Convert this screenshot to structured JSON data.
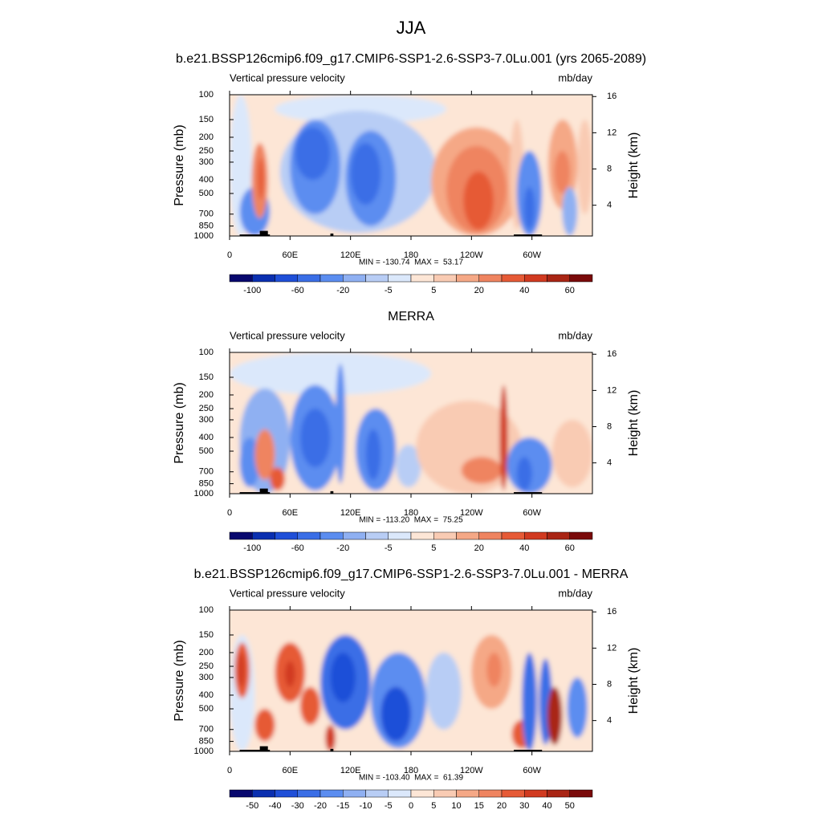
{
  "title": "JJA",
  "chart_data": [
    {
      "type": "contour",
      "title": "b.e21.BSSP126cmip6.f09_g17.CMIP6-SSP1-2.6-SSP3-7.0Lu.001 (yrs 2065-2089)",
      "left_label": "Vertical pressure velocity",
      "right_label": "mb/day",
      "ylabel": "Pressure (mb)",
      "y2label": "Height (km)",
      "stats": "MIN = -130.74  MAX =  53.17",
      "xlim": [
        0,
        360
      ],
      "xticks": [
        0,
        {
          "value": 60,
          "label": "60E"
        },
        {
          "value": 120,
          "label": "120E"
        },
        180,
        {
          "value": 240,
          "label": "120W"
        },
        {
          "value": 300,
          "label": "60W"
        }
      ],
      "ylim": [
        100,
        1000
      ],
      "yticks": [
        100,
        150,
        200,
        250,
        300,
        400,
        500,
        700,
        850,
        1000
      ],
      "ylog": true,
      "y2lim": [
        0.6,
        16.2
      ],
      "y2ticks": [
        4,
        8,
        12,
        16
      ],
      "colorbar": {
        "labels": [
          -100,
          -60,
          -20,
          -5,
          5,
          20,
          40,
          60
        ],
        "colors": [
          "#08086e",
          "#0a2fb0",
          "#1f4fd8",
          "#3a6ee6",
          "#5b8df0",
          "#8fb0f2",
          "#b8cdf5",
          "#dbe8fb",
          "#fde6d6",
          "#f9cbb3",
          "#f5a886",
          "#ef8460",
          "#e65a36",
          "#d13a20",
          "#a92514",
          "#7a0a0a"
        ]
      },
      "features": [
        {
          "lon": [
            -60,
            420
          ],
          "p": [
            30,
            3000
          ],
          "value": 3
        },
        {
          "lon": [
            0,
            22
          ],
          "p": [
            100,
            1000
          ],
          "value": -3
        },
        {
          "lon": [
            45,
            215
          ],
          "p": [
            100,
            160
          ],
          "value": -3
        },
        {
          "lon": [
            50,
            205
          ],
          "p": [
            130,
            950
          ],
          "value": -12
        },
        {
          "lon": [
            60,
            110
          ],
          "p": [
            150,
            700
          ],
          "value": -30
        },
        {
          "lon": [
            65,
            100
          ],
          "p": [
            170,
            400
          ],
          "value": -50
        },
        {
          "lon": [
            115,
            165
          ],
          "p": [
            180,
            850
          ],
          "value": -35
        },
        {
          "lon": [
            120,
            150
          ],
          "p": [
            220,
            600
          ],
          "value": -60
        },
        {
          "lon": [
            10,
            40
          ],
          "p": [
            450,
            1000
          ],
          "value": -30
        },
        {
          "lon": [
            22,
            38
          ],
          "p": [
            220,
            750
          ],
          "value": 25
        },
        {
          "lon": [
            28,
            34
          ],
          "p": [
            280,
            550
          ],
          "value": 35
        },
        {
          "lon": [
            200,
            290
          ],
          "p": [
            170,
            1000
          ],
          "value": 15
        },
        {
          "lon": [
            215,
            275
          ],
          "p": [
            230,
            950
          ],
          "value": 25
        },
        {
          "lon": [
            232,
            262
          ],
          "p": [
            350,
            900
          ],
          "value": 35
        },
        {
          "lon": [
            278,
            292
          ],
          "p": [
            150,
            900
          ],
          "value": 10
        },
        {
          "lon": [
            285,
            310
          ],
          "p": [
            250,
            1000
          ],
          "value": -35
        },
        {
          "lon": [
            292,
            303
          ],
          "p": [
            450,
            900
          ],
          "value": -60
        },
        {
          "lon": [
            316,
            345
          ],
          "p": [
            150,
            650
          ],
          "value": 15
        },
        {
          "lon": [
            322,
            338
          ],
          "p": [
            250,
            500
          ],
          "value": 25
        },
        {
          "lon": [
            330,
            345
          ],
          "p": [
            450,
            1000
          ],
          "value": -15
        },
        {
          "lon": [
            345,
            360
          ],
          "p": [
            150,
            700
          ],
          "value": 10
        }
      ]
    },
    {
      "type": "contour",
      "title": "MERRA",
      "left_label": "Vertical pressure velocity",
      "right_label": "mb/day",
      "ylabel": "Pressure (mb)",
      "y2label": "Height (km)",
      "stats": "MIN = -113.20  MAX =  75.25",
      "xlim": [
        0,
        360
      ],
      "xticks": [
        0,
        {
          "value": 60,
          "label": "60E"
        },
        {
          "value": 120,
          "label": "120E"
        },
        180,
        {
          "value": 240,
          "label": "120W"
        },
        {
          "value": 300,
          "label": "60W"
        }
      ],
      "ylim": [
        100,
        1000
      ],
      "yticks": [
        100,
        150,
        200,
        250,
        300,
        400,
        500,
        700,
        850,
        1000
      ],
      "ylog": true,
      "y2lim": [
        0.6,
        16.2
      ],
      "y2ticks": [
        4,
        8,
        12,
        16
      ],
      "colorbar": {
        "labels": [
          -100,
          -60,
          -20,
          -5,
          5,
          20,
          40,
          60
        ],
        "colors": [
          "#08086e",
          "#0a2fb0",
          "#1f4fd8",
          "#3a6ee6",
          "#5b8df0",
          "#8fb0f2",
          "#b8cdf5",
          "#dbe8fb",
          "#fde6d6",
          "#f9cbb3",
          "#f5a886",
          "#ef8460",
          "#e65a36",
          "#d13a20",
          "#a92514",
          "#7a0a0a"
        ]
      },
      "features": [
        {
          "lon": [
            -60,
            420
          ],
          "p": [
            30,
            3000
          ],
          "value": 3
        },
        {
          "lon": [
            0,
            200
          ],
          "p": [
            100,
            200
          ],
          "value": -3
        },
        {
          "lon": [
            10,
            60
          ],
          "p": [
            180,
            1000
          ],
          "value": -15
        },
        {
          "lon": [
            10,
            30
          ],
          "p": [
            400,
            900
          ],
          "value": -40
        },
        {
          "lon": [
            25,
            45
          ],
          "p": [
            350,
            800
          ],
          "value": 20
        },
        {
          "lon": [
            40,
            55
          ],
          "p": [
            650,
            950
          ],
          "value": 35
        },
        {
          "lon": [
            60,
            110
          ],
          "p": [
            170,
            950
          ],
          "value": -25
        },
        {
          "lon": [
            70,
            100
          ],
          "p": [
            250,
            650
          ],
          "value": -45
        },
        {
          "lon": [
            105,
            115
          ],
          "p": [
            120,
            850
          ],
          "value": -25
        },
        {
          "lon": [
            125,
            165
          ],
          "p": [
            250,
            950
          ],
          "value": -25
        },
        {
          "lon": [
            135,
            150
          ],
          "p": [
            350,
            800
          ],
          "value": -50
        },
        {
          "lon": [
            165,
            190
          ],
          "p": [
            450,
            900
          ],
          "value": -8
        },
        {
          "lon": [
            185,
            290
          ],
          "p": [
            220,
            1000
          ],
          "value": 12
        },
        {
          "lon": [
            230,
            270
          ],
          "p": [
            550,
            850
          ],
          "value": 25
        },
        {
          "lon": [
            268,
            276
          ],
          "p": [
            170,
            950
          ],
          "value": 40
        },
        {
          "lon": [
            275,
            320
          ],
          "p": [
            400,
            1000
          ],
          "value": -30
        },
        {
          "lon": [
            285,
            300
          ],
          "p": [
            550,
            950
          ],
          "value": -50
        },
        {
          "lon": [
            320,
            360
          ],
          "p": [
            300,
            900
          ],
          "value": 10
        }
      ]
    },
    {
      "type": "contour",
      "title": "b.e21.BSSP126cmip6.f09_g17.CMIP6-SSP1-2.6-SSP3-7.0Lu.001 - MERRA",
      "left_label": "Vertical pressure velocity",
      "right_label": "mb/day",
      "ylabel": "Pressure (mb)",
      "y2label": "Height (km)",
      "stats": "MIN = -103.40  MAX =  61.39",
      "xlim": [
        0,
        360
      ],
      "xticks": [
        0,
        {
          "value": 60,
          "label": "60E"
        },
        {
          "value": 120,
          "label": "120E"
        },
        180,
        {
          "value": 240,
          "label": "120W"
        },
        {
          "value": 300,
          "label": "60W"
        }
      ],
      "ylim": [
        100,
        1000
      ],
      "yticks": [
        100,
        150,
        200,
        250,
        300,
        400,
        500,
        700,
        850,
        1000
      ],
      "ylog": true,
      "y2lim": [
        0.6,
        16.2
      ],
      "y2ticks": [
        4,
        8,
        12,
        16
      ],
      "colorbar": {
        "labels": [
          -50,
          -40,
          -30,
          -20,
          -15,
          -10,
          -5,
          0,
          5,
          10,
          15,
          20,
          30,
          40,
          50
        ],
        "colors": [
          "#08086e",
          "#0a2fb0",
          "#1f4fd8",
          "#3a6ee6",
          "#5b8df0",
          "#8fb0f2",
          "#b8cdf5",
          "#dbe8fb",
          "#fde6d6",
          "#f9cbb3",
          "#f5a886",
          "#ef8460",
          "#e65a36",
          "#d13a20",
          "#a92514",
          "#7a0a0a"
        ]
      },
      "features": [
        {
          "lon": [
            -60,
            420
          ],
          "p": [
            30,
            3000
          ],
          "value": 2
        },
        {
          "lon": [
            0,
            25
          ],
          "p": [
            150,
            1000
          ],
          "value": -3
        },
        {
          "lon": [
            5,
            20
          ],
          "p": [
            170,
            420
          ],
          "value": 25
        },
        {
          "lon": [
            8,
            15
          ],
          "p": [
            200,
            350
          ],
          "value": 35
        },
        {
          "lon": [
            25,
            45
          ],
          "p": [
            500,
            850
          ],
          "value": 25
        },
        {
          "lon": [
            45,
            75
          ],
          "p": [
            170,
            450
          ],
          "value": 22
        },
        {
          "lon": [
            55,
            65
          ],
          "p": [
            230,
            350
          ],
          "value": 32
        },
        {
          "lon": [
            70,
            90
          ],
          "p": [
            350,
            650
          ],
          "value": 20
        },
        {
          "lon": [
            95,
            105
          ],
          "p": [
            650,
            1000
          ],
          "value": 30
        },
        {
          "lon": [
            90,
            140
          ],
          "p": [
            150,
            700
          ],
          "value": -25
        },
        {
          "lon": [
            100,
            125
          ],
          "p": [
            200,
            450
          ],
          "value": -40
        },
        {
          "lon": [
            140,
            195
          ],
          "p": [
            200,
            950
          ],
          "value": -20
        },
        {
          "lon": [
            150,
            180
          ],
          "p": [
            350,
            850
          ],
          "value": -35
        },
        {
          "lon": [
            195,
            230
          ],
          "p": [
            200,
            700
          ],
          "value": -8
        },
        {
          "lon": [
            240,
            280
          ],
          "p": [
            150,
            500
          ],
          "value": 10
        },
        {
          "lon": [
            255,
            270
          ],
          "p": [
            200,
            350
          ],
          "value": 18
        },
        {
          "lon": [
            280,
            300
          ],
          "p": [
            600,
            950
          ],
          "value": 25
        },
        {
          "lon": [
            290,
            305
          ],
          "p": [
            200,
            1000
          ],
          "value": -30
        },
        {
          "lon": [
            307,
            320
          ],
          "p": [
            220,
            900
          ],
          "value": -30
        },
        {
          "lon": [
            315,
            330
          ],
          "p": [
            350,
            900
          ],
          "value": 40
        },
        {
          "lon": [
            335,
            355
          ],
          "p": [
            300,
            800
          ],
          "value": -20
        }
      ]
    }
  ]
}
